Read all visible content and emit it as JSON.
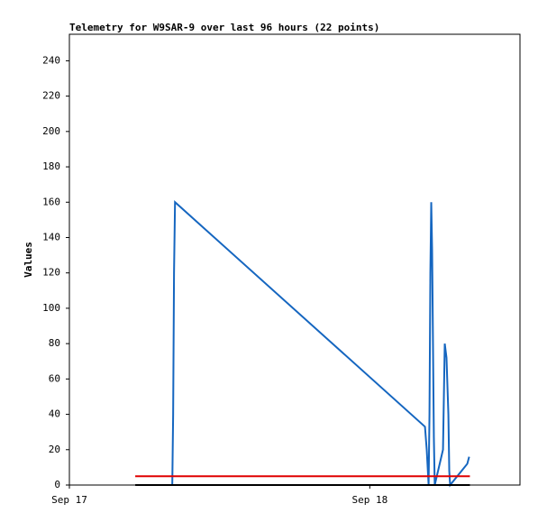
{
  "chart_data": {
    "type": "line",
    "title": "Telemetry for W9SAR-9 over last 96 hours (22 points)",
    "y_label": "Values",
    "xlim": [
      0,
      36
    ],
    "xticks": [
      {
        "value": 0,
        "label": "Sep 17"
      },
      {
        "value": 24,
        "label": "Sep 18"
      }
    ],
    "ylim": [
      0,
      255
    ],
    "yticks": [
      0,
      20,
      40,
      60,
      80,
      100,
      120,
      140,
      160,
      180,
      200,
      220,
      240
    ],
    "grid": false,
    "series": [
      {
        "color": "#1566c0",
        "x": [
          8.22,
          8.29,
          8.36,
          8.44,
          28.41,
          28.55,
          28.7,
          28.77,
          28.84,
          28.91,
          28.98,
          29.05,
          29.12,
          29.19,
          29.85,
          29.99,
          30.13,
          30.28,
          30.35,
          30.42,
          31.79,
          31.94
        ],
        "values": [
          0,
          40,
          120,
          160,
          33,
          20,
          0,
          40,
          120,
          160,
          133,
          80,
          27,
          0,
          20,
          80,
          72,
          40,
          8,
          0,
          12,
          16
        ]
      },
      {
        "color": "#e00000",
        "x": [
          5.26,
          32.0
        ],
        "values": [
          5,
          5
        ]
      },
      {
        "color": "#000000",
        "x": [
          5.26,
          32.0
        ],
        "values": [
          0,
          0
        ]
      }
    ]
  }
}
